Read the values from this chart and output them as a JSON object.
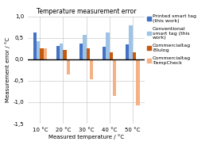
{
  "title": "Temperature measurement error",
  "xlabel": "Measured temperature / °C",
  "ylabel": "Measurement error / °C",
  "categories": [
    "10 °C",
    "20 °C",
    "30 °C",
    "40 °C",
    "50 °C"
  ],
  "series": [
    {
      "label": "Printed smart tag\n(this work)",
      "color": "#4472C4",
      "values": [
        0.63,
        0.31,
        0.36,
        0.3,
        0.34
      ]
    },
    {
      "label": "Conventional\nsmart tag (this\nwork)",
      "color": "#9DC3E6",
      "values": [
        0.42,
        0.37,
        0.57,
        0.63,
        0.79
      ]
    },
    {
      "label": "Commercialtag\n-Blulog",
      "color": "#C55A11",
      "values": [
        0.25,
        0.22,
        0.25,
        0.17,
        0.17
      ]
    },
    {
      "label": "Commercialtag\n-TempCheck",
      "color": "#F4B183",
      "values": [
        0.25,
        -0.35,
        -0.46,
        -0.85,
        -1.07
      ]
    }
  ],
  "ylim": [
    -1.5,
    1.0
  ],
  "yticks": [
    -1.5,
    -1.0,
    -0.5,
    0.0,
    0.5,
    1.0
  ],
  "ytick_labels": [
    "-1,5",
    "-1,0",
    "-0,5",
    "0,0",
    "0,5",
    "1,0"
  ],
  "bar_width": 0.15,
  "background_color": "#FFFFFF",
  "grid_color": "#BFBFBF",
  "title_fontsize": 5.5,
  "axis_fontsize": 5.0,
  "tick_fontsize": 5.0,
  "legend_fontsize": 4.5
}
